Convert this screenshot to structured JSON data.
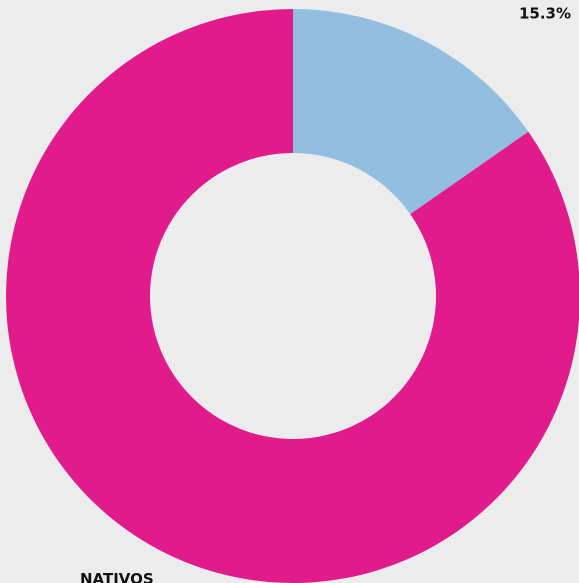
{
  "chart_data": {
    "type": "donut",
    "categories": [
      null,
      "NATIVOS"
    ],
    "values": [
      15.3,
      84.7
    ],
    "value_labels": [
      "15.3%",
      null
    ],
    "colors": [
      "#92bfe0",
      "#e11b8c"
    ]
  }
}
